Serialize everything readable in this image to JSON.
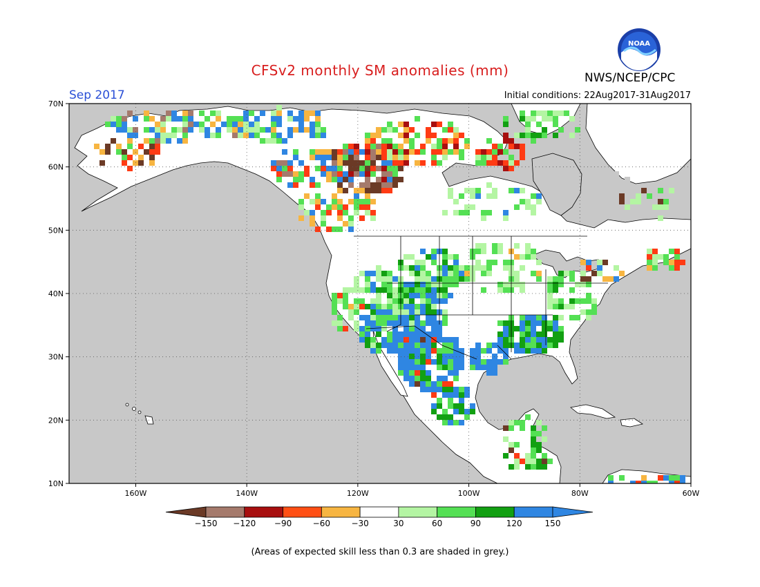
{
  "header": {
    "title": "CFSv2 monthly SM anomalies (mm)",
    "period": "Sep 2017",
    "initial_conditions": "Initial conditions: 22Aug2017-31Aug2017",
    "organization": "NWS/NCEP/CPC",
    "logo_text": "NOAA"
  },
  "map": {
    "lon_range": [
      -172,
      -60
    ],
    "lat_range": [
      10,
      70
    ],
    "lon_ticks": [
      {
        "value": -160,
        "label": "160W"
      },
      {
        "value": -140,
        "label": "140W"
      },
      {
        "value": -120,
        "label": "120W"
      },
      {
        "value": -100,
        "label": "100W"
      },
      {
        "value": -80,
        "label": "80W"
      },
      {
        "value": -60,
        "label": "60W"
      }
    ],
    "lat_ticks": [
      {
        "value": 10,
        "label": "10N"
      },
      {
        "value": 20,
        "label": "20N"
      },
      {
        "value": 30,
        "label": "30N"
      },
      {
        "value": 40,
        "label": "40N"
      },
      {
        "value": 50,
        "label": "50N"
      },
      {
        "value": 60,
        "label": "60N"
      },
      {
        "value": 70,
        "label": "70N"
      }
    ],
    "colors": {
      "low_skill": "#c8c8c8",
      "ocean": "#c8c8c8",
      "land": "#ffffff"
    }
  },
  "colorbar": {
    "labels": [
      "-150",
      "-120",
      "-90",
      "-60",
      "-30",
      "30",
      "60",
      "90",
      "120",
      "150"
    ],
    "colors": [
      "#6b3a26",
      "#a57a6c",
      "#a80f0f",
      "#e0291a",
      "#ff4f14",
      "#f7b541",
      "#ffffff",
      "#b4f5a3",
      "#54e054",
      "#12a012",
      "#2f86e2",
      "#2f86e2"
    ]
  },
  "footnote": "(Areas of expected skill less than 0.3 are shaded in grey.)"
}
